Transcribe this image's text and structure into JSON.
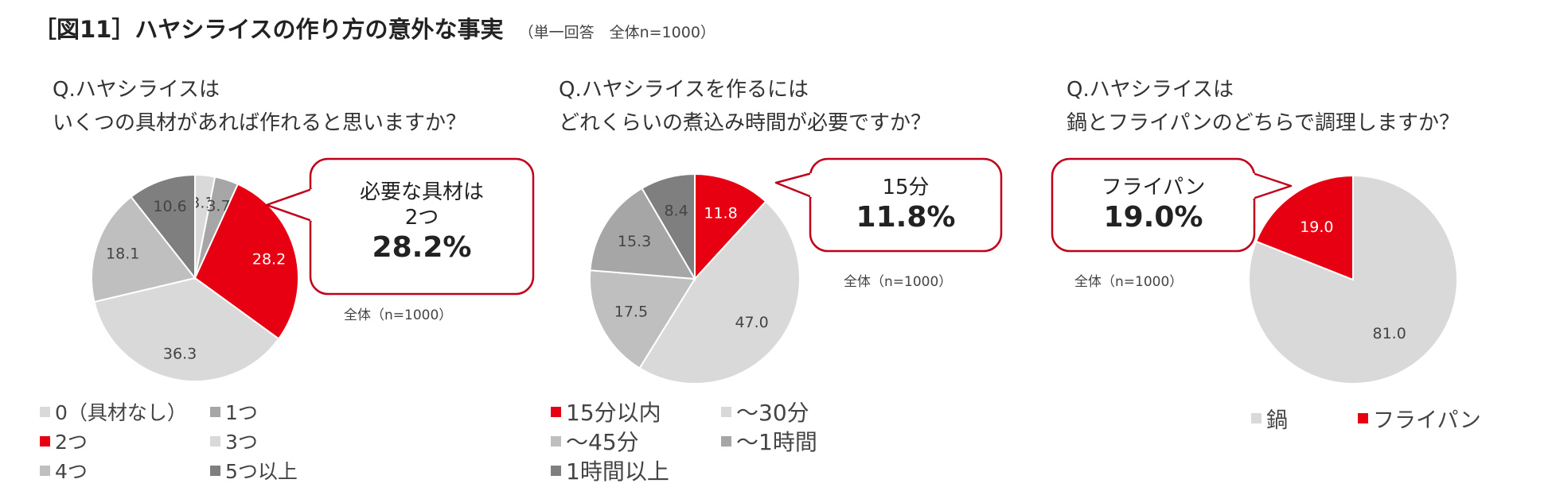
{
  "header": {
    "title": "［図11］ハヤシライスの作り方の意外な事実",
    "subtitle": "（単一回答　全体n=1000）"
  },
  "colors": {
    "red": "#e60012",
    "gray_dark": "#7f7f7f",
    "gray_mid": "#a6a6a6",
    "gray_light": "#bfbfbf",
    "gray_pale": "#d9d9d9",
    "gray_mid2": "#b0b0b0",
    "white": "#ffffff"
  },
  "chart_data": [
    {
      "type": "pie",
      "question": [
        "Q.ハヤシライスは",
        "いくつの具材があれば作れると思いますか？"
      ],
      "slices": [
        {
          "label": "0（具材なし）",
          "value": 3.1,
          "color": "#d9d9d9"
        },
        {
          "label": "1つ",
          "value": 3.7,
          "color": "#a6a6a6"
        },
        {
          "label": "2つ",
          "value": 28.2,
          "color": "#e60012"
        },
        {
          "label": "3つ",
          "value": 36.3,
          "color": "#d9d9d9"
        },
        {
          "label": "4つ",
          "value": 18.1,
          "color": "#bfbfbf"
        },
        {
          "label": "5つ以上",
          "value": 10.6,
          "color": "#7f7f7f"
        }
      ],
      "callout": {
        "line1": "必要な具材は",
        "line2": "2つ",
        "value": "28.2%"
      },
      "note": "全体（n=1000）"
    },
    {
      "type": "pie",
      "question": [
        "Q.ハヤシライスを作るには",
        "どれくらいの煮込み時間が必要ですか？"
      ],
      "slices": [
        {
          "label": "15分以内",
          "value": 11.8,
          "color": "#e60012"
        },
        {
          "label": "～30分",
          "value": 47.0,
          "color": "#d9d9d9"
        },
        {
          "label": "～45分",
          "value": 17.5,
          "color": "#bfbfbf"
        },
        {
          "label": "～1時間",
          "value": 15.3,
          "color": "#a6a6a6"
        },
        {
          "label": "1時間以上",
          "value": 8.4,
          "color": "#7f7f7f"
        }
      ],
      "callout": {
        "line1": "15分",
        "value": "11.8%"
      },
      "note": "全体（n=1000）"
    },
    {
      "type": "pie",
      "question": [
        "Q.ハヤシライスは",
        "鍋とフライパンのどちらで調理しますか？"
      ],
      "slices": [
        {
          "label": "鍋",
          "value": 81.0,
          "color": "#d9d9d9"
        },
        {
          "label": "フライパン",
          "value": 19.0,
          "color": "#e60012"
        }
      ],
      "callout": {
        "line1": "フライパン",
        "value": "19.0%"
      },
      "note": "全体（n=1000）"
    }
  ]
}
